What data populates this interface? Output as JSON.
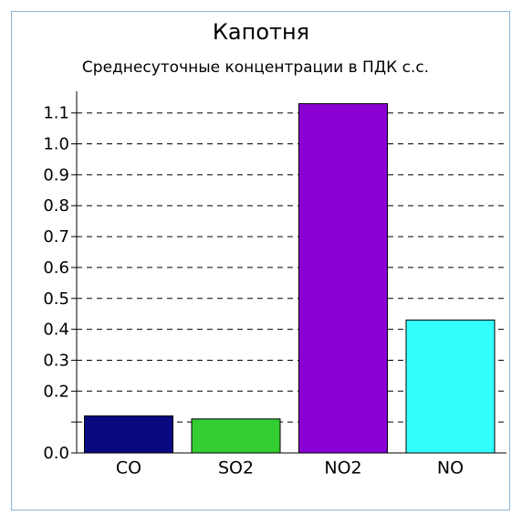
{
  "chart_data": {
    "type": "bar",
    "title": "Капотня",
    "subtitle": "Среднесуточные концентрации в ПДК с.с.",
    "categories": [
      "CO",
      "SO2",
      "NO2",
      "NO"
    ],
    "values": [
      0.12,
      0.11,
      1.13,
      0.43
    ],
    "colors": [
      "#0a0a80",
      "#33cc33",
      "#8a00d4",
      "#33ffff"
    ],
    "ylim": [
      0,
      1.17
    ],
    "yticks": [
      {
        "value": 0,
        "label": "0.0"
      },
      {
        "value": 0.1,
        "label": null
      },
      0.2,
      0.3,
      0.4,
      0.5,
      0.6,
      0.7,
      0.8,
      0.9,
      {
        "value": 1.0,
        "label": "1.0"
      },
      1.1
    ],
    "grid": true
  }
}
